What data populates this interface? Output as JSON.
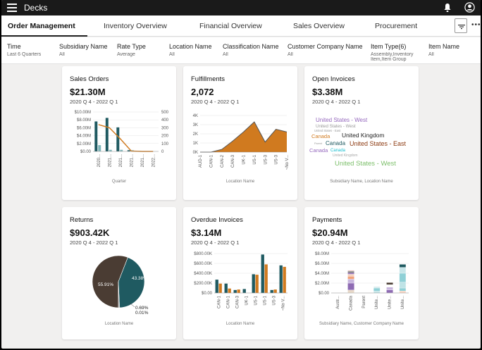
{
  "app": {
    "title": "Decks"
  },
  "tabs": [
    {
      "label": "Order Management",
      "active": true
    },
    {
      "label": "Inventory Overview"
    },
    {
      "label": "Financial Overview"
    },
    {
      "label": "Sales Overview"
    },
    {
      "label": "Procurement"
    }
  ],
  "filters": [
    {
      "label": "Time",
      "value": "Last 6 Quarters"
    },
    {
      "label": "Subsidiary Name",
      "value": "All"
    },
    {
      "label": "Rate Type",
      "value": "Average"
    },
    {
      "label": "Location Name",
      "value": "All"
    },
    {
      "label": "Classification Name",
      "value": "All"
    },
    {
      "label": "Customer Company Name",
      "value": "All"
    },
    {
      "label": "Item Type(6)",
      "value": "Assembly,Inventory Item,Item Group"
    },
    {
      "label": "Item Name",
      "value": "All"
    }
  ],
  "colors": {
    "teal": "#1f5a61",
    "orange": "#d07a1f",
    "dark_brown": "#4a3c33"
  },
  "cards": {
    "sales_orders": {
      "title": "Sales Orders",
      "value": "$21.30M",
      "period": "2020 Q 4 - 2022 Q 1",
      "caption": "Quarter"
    },
    "fulfillments": {
      "title": "Fulfillments",
      "value": "2,072",
      "period": "2020 Q 4 - 2022 Q 1",
      "caption": "Location Name"
    },
    "open_invoices": {
      "title": "Open Invoices",
      "value": "$3.38M",
      "period": "2020 Q 4 - 2022 Q 1",
      "caption": "Subsidiary Name, Location Name"
    },
    "returns": {
      "title": "Returns",
      "value": "$903.42K",
      "period": "2020 Q 4 - 2022 Q 1",
      "caption": "Location Name"
    },
    "overdue_invoices": {
      "title": "Overdue Invoices",
      "value": "$3.14M",
      "period": "2020 Q 4 - 2022 Q 1",
      "caption": "Location Name"
    },
    "payments": {
      "title": "Payments",
      "value": "$20.94M",
      "period": "2020 Q 4 - 2022 Q 1",
      "caption": "Subsidiary Name, Customer Company Name"
    }
  },
  "chart_data": [
    {
      "id": "sales_orders",
      "type": "bar",
      "categories": [
        "2020...",
        "2021...",
        "2021...",
        "2021...",
        "2021...",
        "2022..."
      ],
      "y_left_ticks": [
        "$10.00M",
        "$8.00M",
        "$6.00M",
        "$4.00M",
        "$2.00M",
        "$0.00"
      ],
      "y_right_ticks": [
        "500",
        "400",
        "300",
        "200",
        "100",
        "0"
      ],
      "bars": [
        [
          7.6,
          1.6
        ],
        [
          8.5,
          0.4
        ],
        [
          6.1,
          0.4
        ],
        [
          0.3,
          0.3
        ],
        [
          0.1,
          0.0
        ],
        [
          0.0,
          0.0
        ]
      ],
      "line_values": [
        340,
        300,
        160,
        5,
        0,
        0
      ],
      "ylim": [
        0,
        10
      ],
      "y2lim": [
        0,
        500
      ]
    },
    {
      "id": "fulfillments",
      "type": "area",
      "categories": [
        "AUD-1",
        "CAN-1",
        "CAN-2",
        "CAN-3",
        "UK-1",
        "US-1",
        "US-3",
        "US-3",
        "~No V..."
      ],
      "y_ticks": [
        "4K",
        "3K",
        "2K",
        "1K",
        "0K"
      ],
      "values": [
        0,
        0,
        0.3,
        1.2,
        2.2,
        3.3,
        1.1,
        2.5,
        2.2
      ],
      "ylim": [
        0,
        4
      ]
    },
    {
      "id": "open_invoices",
      "type": "table",
      "words": [
        {
          "text": "United States - West",
          "color": "#9467bd"
        },
        {
          "text": "United States - West",
          "color": "#999999"
        },
        {
          "text": "United States - East",
          "color": "#999999"
        },
        {
          "text": "Canada",
          "color": "#d07a1f"
        },
        {
          "text": "United Kingdom",
          "color": "#222222"
        },
        {
          "text": "Parent",
          "color": "#999999"
        },
        {
          "text": "Canada",
          "color": "#1f5a61"
        },
        {
          "text": "United States - East",
          "color": "#8c3a10"
        },
        {
          "text": "Canada",
          "color": "#9467bd"
        },
        {
          "text": "Canada",
          "color": "#17becf"
        },
        {
          "text": "United Kingdom",
          "color": "#aaaaaa"
        },
        {
          "text": "United States - West",
          "color": "#7cbf6a"
        }
      ]
    },
    {
      "id": "returns",
      "type": "pie",
      "slices": [
        {
          "label": "55.91%",
          "value": 55.91,
          "color": "#4a3c33"
        },
        {
          "label": "43.38%",
          "value": 43.38,
          "color": "#1f5a61"
        },
        {
          "label": "0.69%",
          "value": 0.69,
          "color": "#999999"
        },
        {
          "label": "0.01%",
          "value": 0.01,
          "color": "#cccccc"
        }
      ]
    },
    {
      "id": "overdue_invoices",
      "type": "bar",
      "categories": [
        "CAN-1",
        "CAN-1",
        "CAN-3",
        "UK-1",
        "US-1",
        "US-1",
        "US-3",
        "~No V..."
      ],
      "y_ticks": [
        "$800.00K",
        "$600.00K",
        "$400.00K",
        "$200.00K",
        "$0.00"
      ],
      "bars": [
        [
          270,
          190
        ],
        [
          190,
          90
        ],
        [
          60,
          70
        ],
        [
          80,
          0
        ],
        [
          380,
          370
        ],
        [
          780,
          580
        ],
        [
          60,
          70
        ],
        [
          560,
          530
        ]
      ],
      "ylim": [
        0,
        800
      ]
    },
    {
      "id": "payments",
      "type": "bar",
      "categories": [
        "Austr...",
        "Canada",
        "Parent",
        "Unite...",
        "Unite...",
        "Unite..."
      ],
      "y_ticks": [
        "$8.00M",
        "$6.00M",
        "$4.00M",
        "$2.00M",
        "$0.00"
      ],
      "stacks": [
        [],
        [
          {
            "v": 0.6,
            "c": "#e8d9c8"
          },
          {
            "v": 1.4,
            "c": "#8e6bb3"
          },
          {
            "v": 0.8,
            "c": "#c8b6de"
          },
          {
            "v": 0.6,
            "c": "#f2a27a"
          },
          {
            "v": 0.4,
            "c": "#f7d2bf"
          },
          {
            "v": 0.3,
            "c": "#8e6bb3"
          },
          {
            "v": 0.3,
            "c": "#6b6b6b"
          },
          {
            "v": 0.2,
            "c": "#e5c2c2"
          }
        ],
        [],
        [
          {
            "v": 0.4,
            "c": "#bfe3e6"
          },
          {
            "v": 0.6,
            "c": "#8fd0d6"
          },
          {
            "v": 0.3,
            "c": "#d9ecee"
          }
        ],
        [
          {
            "v": 0.6,
            "c": "#8e6bb3"
          },
          {
            "v": 0.6,
            "c": "#c8b6de"
          },
          {
            "v": 0.5,
            "c": "#ffffff"
          },
          {
            "v": 0.4,
            "c": "#4a3c33"
          }
        ],
        [
          {
            "v": 0.4,
            "c": "#f7d2bf"
          },
          {
            "v": 0.6,
            "c": "#8fd0d6"
          },
          {
            "v": 1.2,
            "c": "#bfe3e6"
          },
          {
            "v": 1.8,
            "c": "#8fd0d6"
          },
          {
            "v": 1.2,
            "c": "#c8e6e9"
          },
          {
            "v": 0.6,
            "c": "#1f5a61"
          }
        ]
      ],
      "ylim": [
        0,
        8
      ]
    }
  ]
}
